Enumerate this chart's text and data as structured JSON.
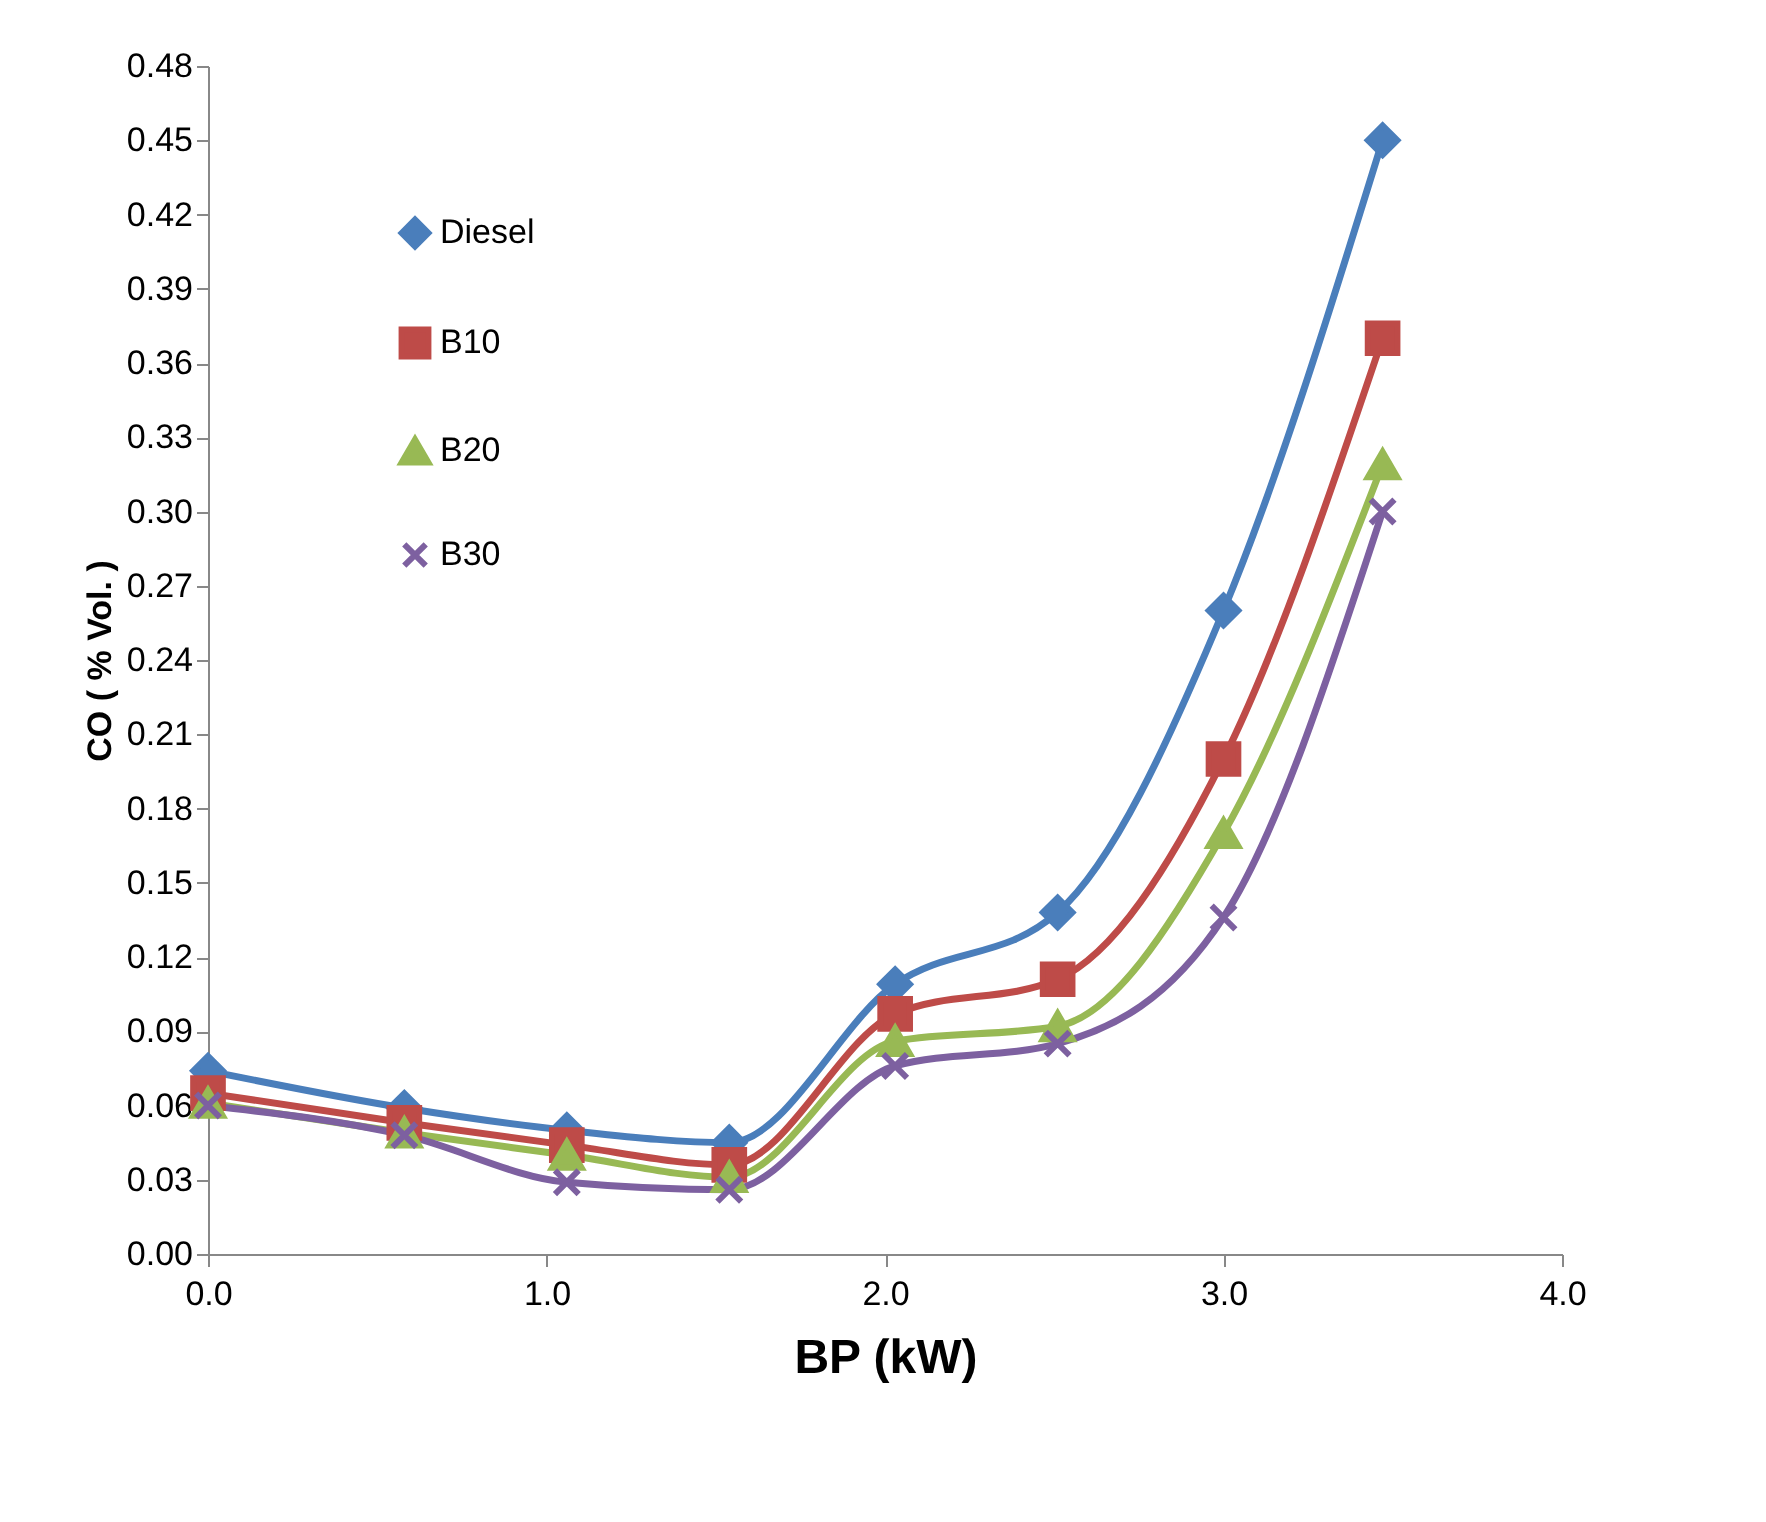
{
  "chart_data": {
    "type": "line",
    "xlabel": "BP (kW)",
    "ylabel": "CO ( % Vol. )",
    "x": [
      0,
      0.58,
      1.06,
      1.54,
      2.03,
      2.51,
      3.0,
      3.47
    ],
    "series": [
      {
        "name": "Diesel",
        "color": "#4a7ebb",
        "marker": "diamond",
        "values": [
          0.074,
          0.059,
          0.05,
          0.045,
          0.109,
          0.138,
          0.26,
          0.45
        ]
      },
      {
        "name": "B10",
        "color": "#be4b48",
        "marker": "square",
        "values": [
          0.065,
          0.053,
          0.044,
          0.036,
          0.097,
          0.111,
          0.2,
          0.37
        ]
      },
      {
        "name": "B20",
        "color": "#98b954",
        "marker": "triangle",
        "values": [
          0.061,
          0.049,
          0.04,
          0.031,
          0.086,
          0.092,
          0.17,
          0.319
        ]
      },
      {
        "name": "B30",
        "color": "#7d60a0",
        "marker": "cross",
        "values": [
          0.06,
          0.048,
          0.029,
          0.026,
          0.076,
          0.085,
          0.136,
          0.3
        ]
      }
    ],
    "xlim": [
      0,
      4
    ],
    "xticks": [
      {
        "value": 0,
        "label": "0.0"
      },
      {
        "value": 1,
        "label": "1.0"
      },
      {
        "value": 2,
        "label": "2.0"
      },
      {
        "value": 3,
        "label": "3.0"
      },
      {
        "value": 4,
        "label": "4.0"
      }
    ],
    "ylim": [
      0,
      0.48
    ],
    "yticks": [
      {
        "value": 0,
        "label": "0.00"
      },
      {
        "value": 0.03,
        "label": "0.03"
      },
      {
        "value": 0.06,
        "label": "0.06"
      },
      {
        "value": 0.09,
        "label": "0.09"
      },
      {
        "value": 0.12,
        "label": "0.12"
      },
      {
        "value": 0.15,
        "label": "0.15"
      },
      {
        "value": 0.18,
        "label": "0.18"
      },
      {
        "value": 0.21,
        "label": "0.21"
      },
      {
        "value": 0.24,
        "label": "0.24"
      },
      {
        "value": 0.27,
        "label": "0.27"
      },
      {
        "value": 0.3,
        "label": "0.30"
      },
      {
        "value": 0.33,
        "label": "0.33"
      },
      {
        "value": 0.36,
        "label": "0.36"
      },
      {
        "value": 0.39,
        "label": "0.39"
      },
      {
        "value": 0.42,
        "label": "0.42"
      },
      {
        "value": 0.45,
        "label": "0.45"
      },
      {
        "value": 0.48,
        "label": "0.48"
      }
    ],
    "grid": false,
    "legend": "top left",
    "line_style": "solid"
  }
}
